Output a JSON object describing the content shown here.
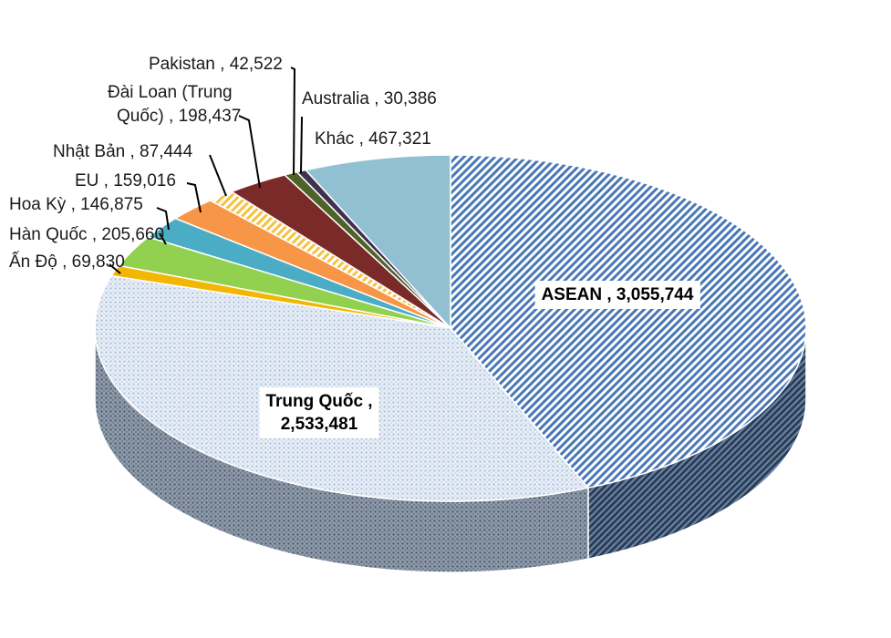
{
  "chart_data": {
    "type": "pie",
    "style": "3d-exploded-none",
    "title": "",
    "slices": [
      {
        "label": "ASEAN",
        "value": 3055744,
        "value_text": "3,055,744",
        "color": "#4a78b5",
        "pattern": "diagonal-stripes"
      },
      {
        "label": "Trung Quốc",
        "value": 2533481,
        "value_text": "2,533,481",
        "color": "#b7c8de",
        "pattern": "dots"
      },
      {
        "label": "Ấn Độ",
        "value": 69830,
        "value_text": "69,830",
        "color": "#f2b705"
      },
      {
        "label": "Hàn Quốc",
        "value": 205660,
        "value_text": "205,660",
        "color": "#92d050"
      },
      {
        "label": "Hoa Kỳ",
        "value": 146875,
        "value_text": "146,875",
        "color": "#4bacc6"
      },
      {
        "label": "EU",
        "value": 159016,
        "value_text": "159,016",
        "color": "#f79646"
      },
      {
        "label": "Nhật Bản",
        "value": 87444,
        "value_text": "87,444",
        "color": "#f5c242",
        "pattern": "diagonal-stripes"
      },
      {
        "label": "Đài Loan (Trung Quốc)",
        "label_line1": "Đài Loan (Trung",
        "label_line2": "Quốc)",
        "value": 198437,
        "value_text": "198,437",
        "color": "#7b2a2a"
      },
      {
        "label": "Pakistan",
        "value": 42522,
        "value_text": "42,522",
        "color": "#4f6228"
      },
      {
        "label": "Australia",
        "value": 30386,
        "value_text": "30,386",
        "color": "#403152"
      },
      {
        "label": "Khác",
        "value": 467321,
        "value_text": "467,321",
        "color": "#92c0d3"
      }
    ]
  }
}
